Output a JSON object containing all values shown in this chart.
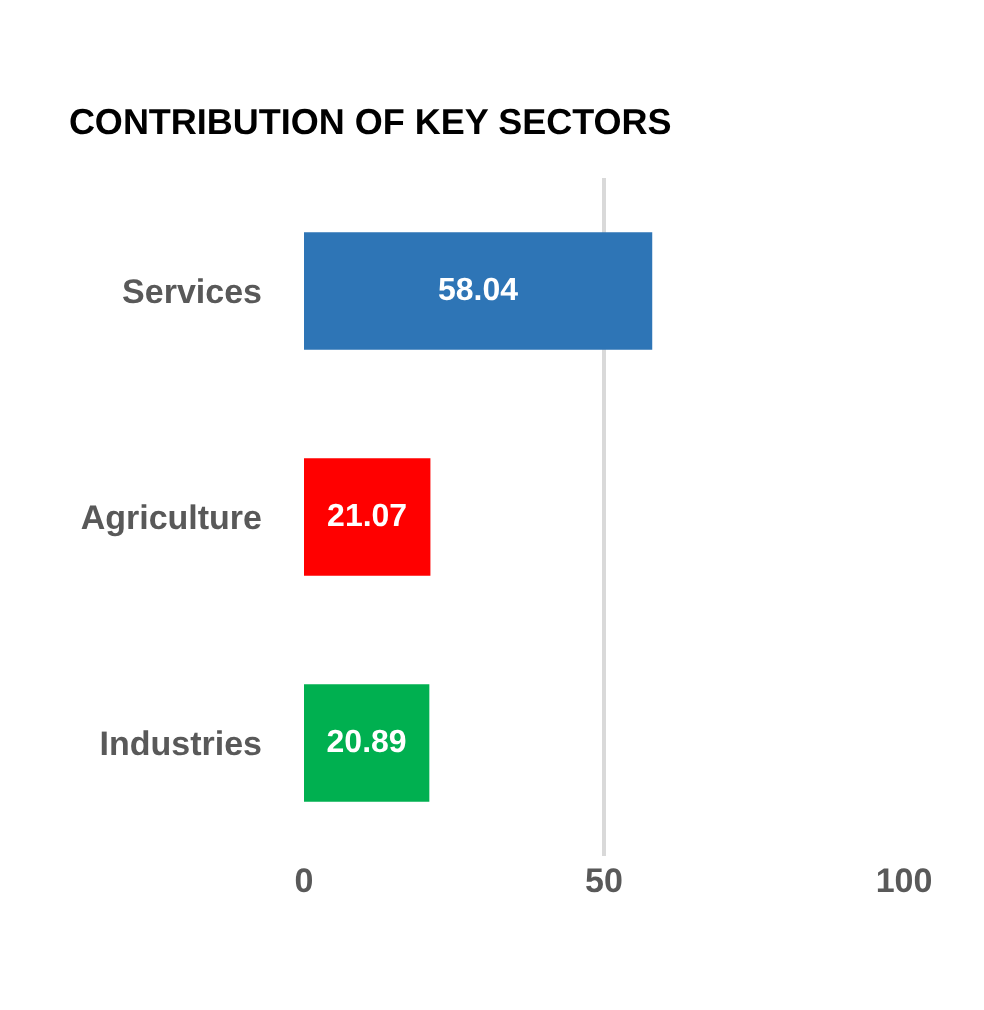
{
  "chart_data": {
    "type": "bar",
    "orientation": "horizontal",
    "title": "CONTRIBUTION OF KEY SECTORS",
    "categories": [
      "Services",
      "Agriculture",
      "Industries"
    ],
    "values": [
      58.04,
      21.07,
      20.89
    ],
    "colors": [
      "#2e75b6",
      "#ff0000",
      "#00b050"
    ],
    "xlim": [
      0,
      100
    ],
    "xticks": [
      0,
      50,
      100
    ],
    "grid": "x",
    "data_labels": true
  }
}
